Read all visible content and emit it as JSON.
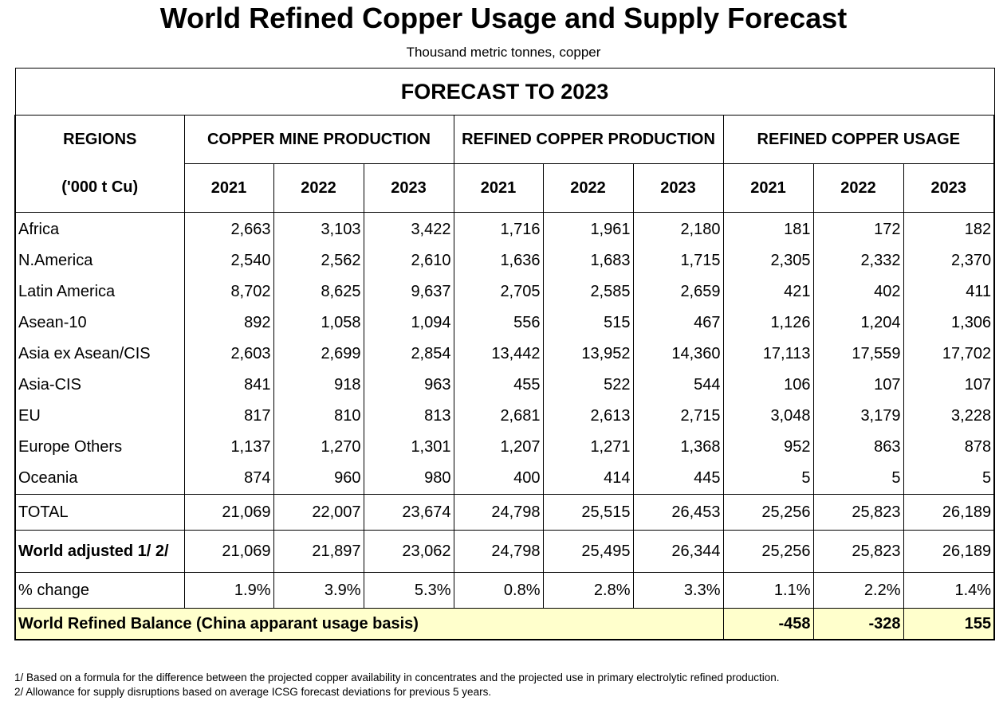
{
  "title": "World Refined Copper Usage and Supply Forecast",
  "subtitle": "Thousand metric tonnes, copper",
  "table": {
    "banner": "FORECAST TO 2023",
    "regions_header": "REGIONS",
    "units_header": "('000 t Cu)",
    "groups": [
      "COPPER MINE PRODUCTION",
      "REFINED COPPER PRODUCTION",
      "REFINED COPPER USAGE"
    ],
    "years": [
      "2021",
      "2022",
      "2023",
      "2021",
      "2022",
      "2023",
      "2021",
      "2022",
      "2023"
    ],
    "rows": [
      {
        "label": "Africa",
        "values": [
          "2,663",
          "3,103",
          "3,422",
          "1,716",
          "1,961",
          "2,180",
          "181",
          "172",
          "182"
        ]
      },
      {
        "label": "N.America",
        "values": [
          "2,540",
          "2,562",
          "2,610",
          "1,636",
          "1,683",
          "1,715",
          "2,305",
          "2,332",
          "2,370"
        ]
      },
      {
        "label": "Latin America",
        "values": [
          "8,702",
          "8,625",
          "9,637",
          "2,705",
          "2,585",
          "2,659",
          "421",
          "402",
          "411"
        ]
      },
      {
        "label": "Asean-10",
        "values": [
          "892",
          "1,058",
          "1,094",
          "556",
          "515",
          "467",
          "1,126",
          "1,204",
          "1,306"
        ]
      },
      {
        "label": "Asia ex Asean/CIS",
        "values": [
          "2,603",
          "2,699",
          "2,854",
          "13,442",
          "13,952",
          "14,360",
          "17,113",
          "17,559",
          "17,702"
        ]
      },
      {
        "label": "Asia-CIS",
        "values": [
          "841",
          "918",
          "963",
          "455",
          "522",
          "544",
          "106",
          "107",
          "107"
        ]
      },
      {
        "label": "EU",
        "values": [
          "817",
          "810",
          "813",
          "2,681",
          "2,613",
          "2,715",
          "3,048",
          "3,179",
          "3,228"
        ]
      },
      {
        "label": "Europe Others",
        "values": [
          "1,137",
          "1,270",
          "1,301",
          "1,207",
          "1,271",
          "1,368",
          "952",
          "863",
          "878"
        ]
      },
      {
        "label": "Oceania",
        "values": [
          "874",
          "960",
          "980",
          "400",
          "414",
          "445",
          "5",
          "5",
          "5"
        ]
      }
    ],
    "total": {
      "label": "TOTAL",
      "values": [
        "21,069",
        "22,007",
        "23,674",
        "24,798",
        "25,515",
        "26,453",
        "25,256",
        "25,823",
        "26,189"
      ]
    },
    "world_adjusted": {
      "label": "World adjusted 1/ 2/",
      "values": [
        "21,069",
        "21,897",
        "23,062",
        "24,798",
        "25,495",
        "26,344",
        "25,256",
        "25,823",
        "26,189"
      ]
    },
    "pct_change": {
      "label": "% change",
      "values": [
        "1.9%",
        "3.9%",
        "5.3%",
        "0.8%",
        "2.8%",
        "3.3%",
        "1.1%",
        "2.2%",
        "1.4%"
      ]
    },
    "balance": {
      "label": "World Refined Balance (China apparant usage basis)",
      "values": [
        "-458",
        "-328",
        "155"
      ]
    }
  },
  "footnotes": [
    "1/ Based on a formula for the difference between the projected copper availability in concentrates and the projected use in primary electrolytic refined production.",
    "2/ Allowance for supply disruptions based on average ICSG forecast deviations for previous 5 years."
  ],
  "colors": {
    "balance_row_bg": "#ffffcc",
    "border": "#000000"
  }
}
